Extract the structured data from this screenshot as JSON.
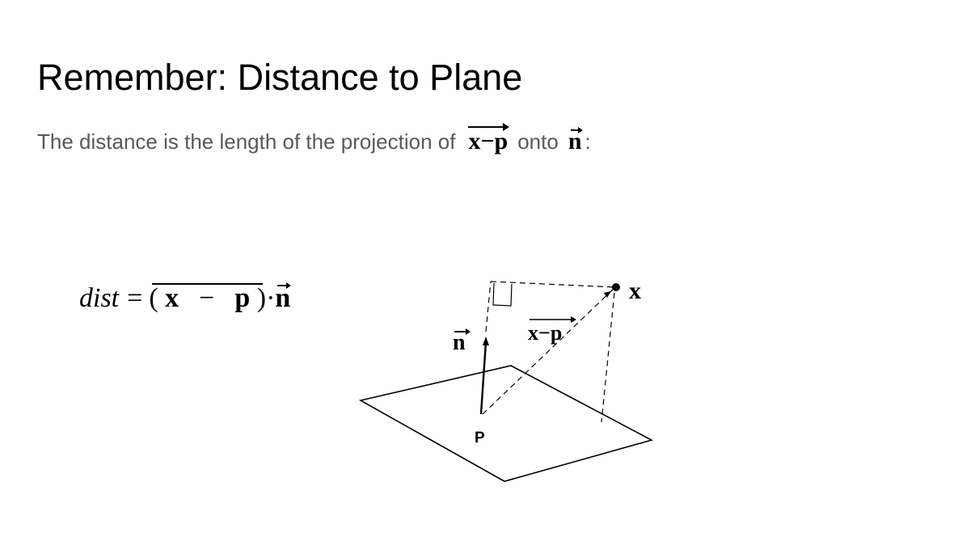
{
  "slide": {
    "title": "Remember: Distance to Plane",
    "subtitle_prefix": "The distance is the length of the projection of",
    "subtitle_vector": "x−p",
    "subtitle_middle": "onto",
    "subtitle_normal": "n",
    "subtitle_suffix": ":"
  },
  "formula": {
    "lhs": "dist",
    "equals": "=",
    "open_paren": "(",
    "x": "x",
    "minus": "−",
    "p": "p",
    "close_paren": ")",
    "dot": "·",
    "n": "n"
  },
  "diagram": {
    "normal_label": "n",
    "vector_label": "x−p",
    "point_x_label": "x",
    "point_p_label": "P"
  },
  "colors": {
    "title": "#000000",
    "subtitle": "#595959",
    "ink": "#000000"
  }
}
